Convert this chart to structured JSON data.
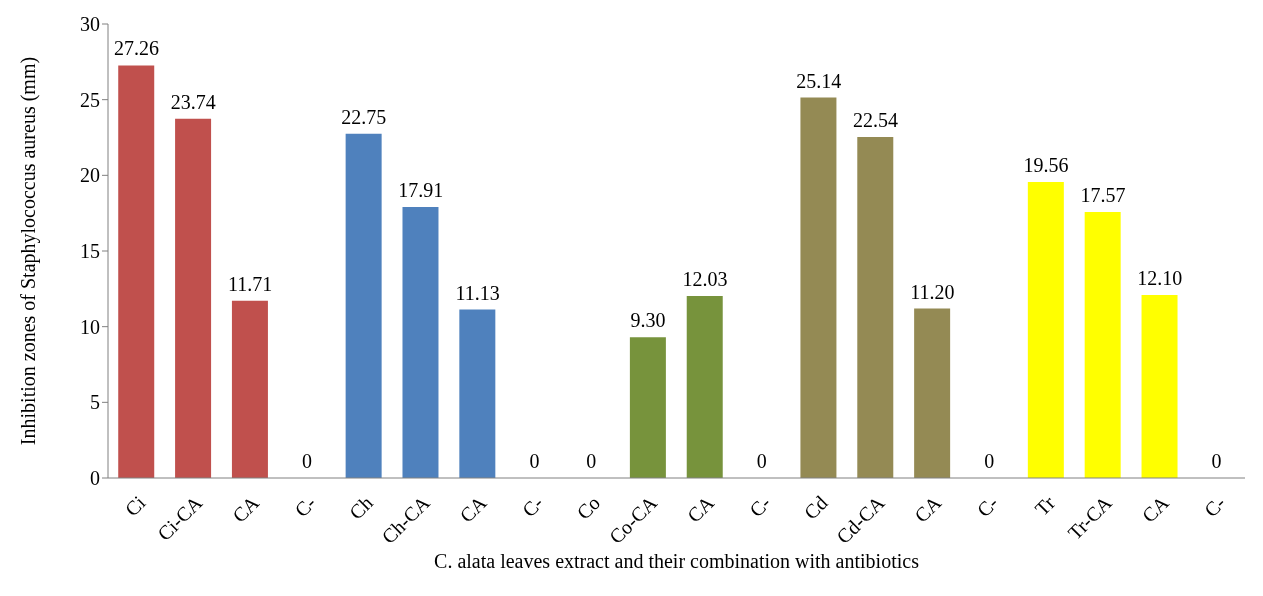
{
  "chart_data": {
    "type": "bar",
    "xlabel": "C. alata leaves extract and their combination with antibiotics",
    "ylabel": "Inhibition zones of Staphylococcus aureus (mm)",
    "categories": [
      "Ci",
      "Ci-CA",
      "CA",
      "C-",
      "Ch",
      "Ch-CA",
      "CA",
      "C-",
      "Co",
      "Co-CA",
      "CA",
      "C-",
      "Cd",
      "Cd-CA",
      "CA",
      "C-",
      "Tr",
      "Tr-CA",
      "CA",
      "C-"
    ],
    "values": [
      27.26,
      23.74,
      11.71,
      0,
      22.75,
      17.91,
      11.13,
      0,
      0,
      9.3,
      12.03,
      0,
      25.14,
      22.54,
      11.2,
      0,
      19.56,
      17.57,
      12.1,
      0
    ],
    "value_labels": [
      "27.26",
      "23.74",
      "11.71",
      "0",
      "22.75",
      "17.91",
      "11.13",
      "0",
      "0",
      "9.30",
      "12.03",
      "0",
      "25.14",
      "22.54",
      "11.20",
      "0",
      "19.56",
      "17.57",
      "12.10",
      "0"
    ],
    "colors": [
      "#c0504d",
      "#c0504d",
      "#c0504d",
      "#c0504d",
      "#4f81bd",
      "#4f81bd",
      "#4f81bd",
      "#4f81bd",
      "#77933c",
      "#77933c",
      "#77933c",
      "#77933c",
      "#948a54",
      "#948a54",
      "#948a54",
      "#948a54",
      "#ffff00",
      "#ffff00",
      "#ffff00",
      "#ffff00"
    ],
    "ylim": [
      0,
      30
    ],
    "yticks": [
      0,
      5,
      10,
      15,
      20,
      25,
      30
    ],
    "grid": false,
    "legend": false
  }
}
